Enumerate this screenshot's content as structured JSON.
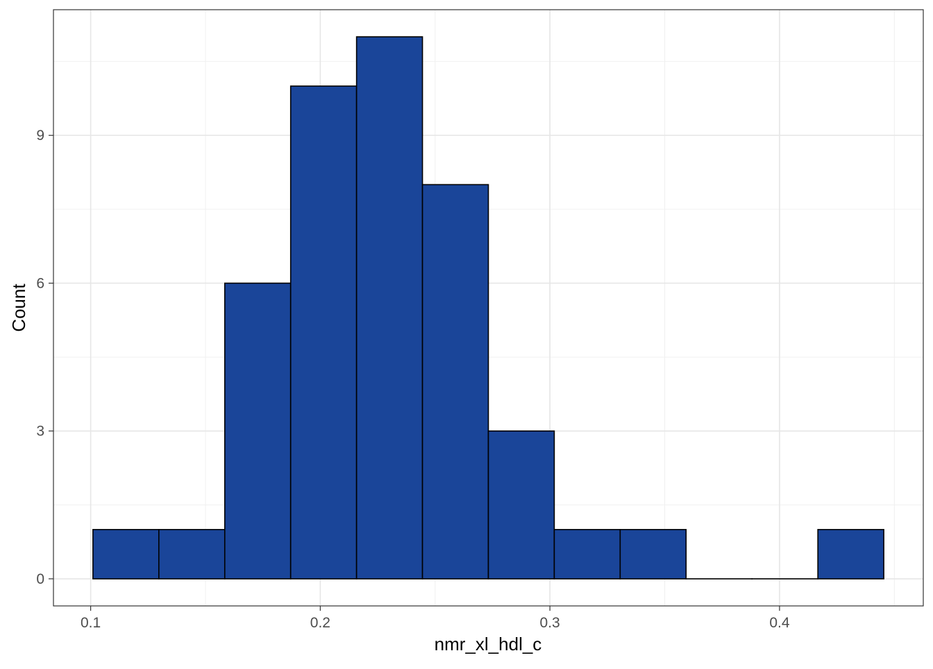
{
  "chart_data": {
    "type": "bar",
    "subtype": "histogram",
    "title": "",
    "xlabel": "nmr_xl_hdl_c",
    "ylabel": "Count",
    "xlim": [
      0.0838,
      0.4626
    ],
    "ylim": [
      -0.55,
      11.55
    ],
    "x_ticks": [
      {
        "value": 0.1,
        "label": "0.1"
      },
      {
        "value": 0.2,
        "label": "0.2"
      },
      {
        "value": 0.3,
        "label": "0.3"
      },
      {
        "value": 0.4,
        "label": "0.4"
      }
    ],
    "y_ticks": [
      {
        "value": 0,
        "label": "0"
      },
      {
        "value": 3,
        "label": "3"
      },
      {
        "value": 6,
        "label": "6"
      },
      {
        "value": 9,
        "label": "9"
      }
    ],
    "bin_width": 0.0287,
    "bins": [
      {
        "x0": 0.101,
        "x1": 0.1297,
        "count": 1
      },
      {
        "x0": 0.1297,
        "x1": 0.1584,
        "count": 1
      },
      {
        "x0": 0.1584,
        "x1": 0.1871,
        "count": 6
      },
      {
        "x0": 0.1871,
        "x1": 0.2158,
        "count": 10
      },
      {
        "x0": 0.2158,
        "x1": 0.2445,
        "count": 11
      },
      {
        "x0": 0.2445,
        "x1": 0.2732,
        "count": 8
      },
      {
        "x0": 0.2732,
        "x1": 0.3019,
        "count": 3
      },
      {
        "x0": 0.3019,
        "x1": 0.3306,
        "count": 1
      },
      {
        "x0": 0.3306,
        "x1": 0.3593,
        "count": 1
      },
      {
        "x0": 0.3593,
        "x1": 0.388,
        "count": 0
      },
      {
        "x0": 0.388,
        "x1": 0.4167,
        "count": 0
      },
      {
        "x0": 0.4167,
        "x1": 0.4454,
        "count": 1
      }
    ],
    "bar_fill": "#1a4599",
    "bar_stroke": "#000000",
    "grid": true,
    "legend": "none",
    "theme": "bw"
  }
}
